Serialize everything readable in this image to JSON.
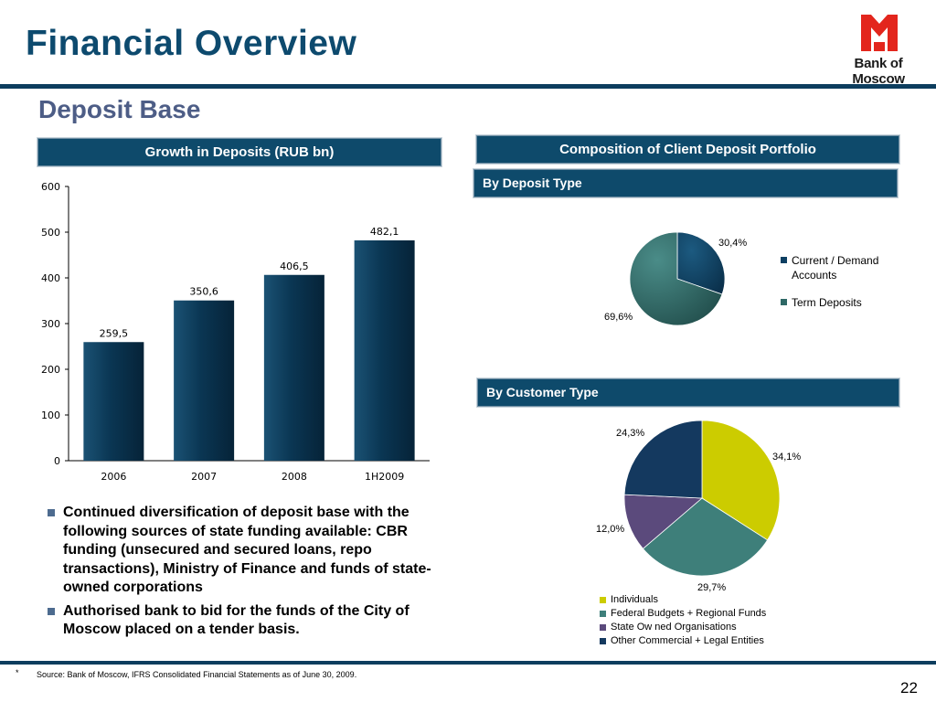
{
  "header": {
    "title": "Financial Overview",
    "logo_text": "Bank of Moscow",
    "logo_color": "#e3261d"
  },
  "subtitle": "Deposit Base",
  "left_panel": {
    "header": "Growth in Deposits (RUB bn)"
  },
  "right_panel": {
    "header": "Composition of Client Deposit Portfolio",
    "deposit_type_header": "By Deposit Type",
    "customer_type_header": "By Customer Type"
  },
  "chart_data": [
    {
      "type": "bar",
      "title": "Growth in Deposits (RUB bn)",
      "categories": [
        "2006",
        "2007",
        "2008",
        "1H2009"
      ],
      "values": [
        259.5,
        350.6,
        406.5,
        482.1
      ],
      "value_labels": [
        "259,5",
        "350,6",
        "406,5",
        "482,1"
      ],
      "ylim": [
        0,
        600
      ],
      "yticks": [
        "0",
        "100",
        "200",
        "300",
        "400",
        "500",
        "600"
      ],
      "color": "#0a3653",
      "grid": false
    },
    {
      "type": "pie",
      "title": "By Deposit Type",
      "slices": [
        {
          "name": "Current / Demand Accounts",
          "value": 30.4,
          "label": "30,4%",
          "color": "#0d3f62"
        },
        {
          "name": "Term Deposits",
          "value": 69.6,
          "label": "69,6%",
          "color": "#2e6866"
        }
      ],
      "legend_position": "right"
    },
    {
      "type": "pie",
      "title": "By Customer Type",
      "slices": [
        {
          "name": "Individuals",
          "value": 34.1,
          "label": "34,1%",
          "color": "#cccc00"
        },
        {
          "name": "Federal Budgets + Regional Funds",
          "value": 29.7,
          "label": "29,7%",
          "color": "#3e7f7a"
        },
        {
          "name": "State Ow ned Organisations",
          "value": 12.0,
          "label": "12,0%",
          "color": "#5b4a7c"
        },
        {
          "name": "Other Commercial + Legal Entities",
          "value": 24.3,
          "label": "24,3%",
          "color": "#14395f"
        }
      ],
      "legend_position": "bottom"
    }
  ],
  "bullets": [
    "Continued diversification of deposit base with the following sources of state funding available: CBR funding (unsecured and secured loans, repo transactions), Ministry of Finance and funds of state-owned corporations",
    "Authorised bank to bid for the funds of the City of Moscow placed on a tender basis."
  ],
  "footer": {
    "marker": "*",
    "source": "Source: Bank of Moscow, IFRS Consolidated Financial Statements as of June 30, 2009.",
    "page_number": "22"
  }
}
